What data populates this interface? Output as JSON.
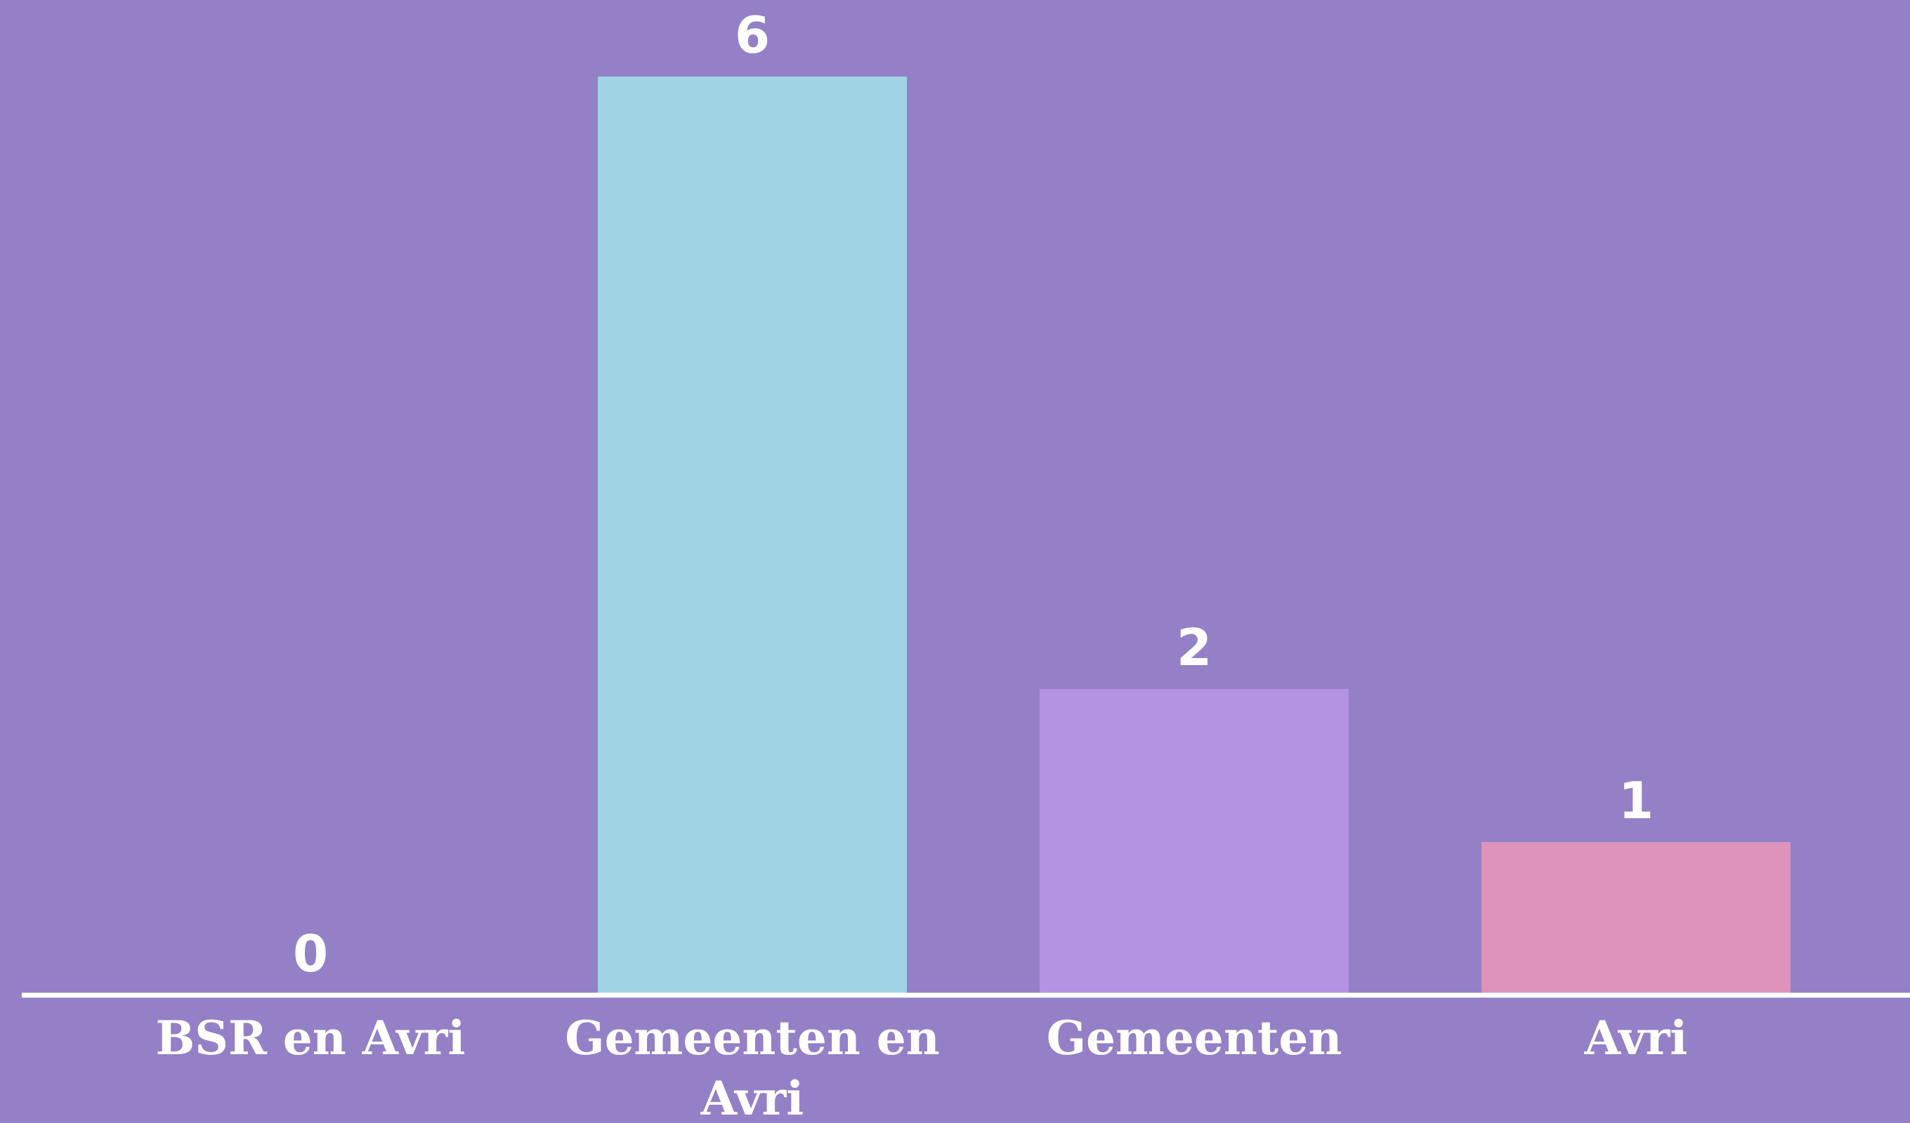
{
  "chart_data": {
    "type": "bar",
    "categories": [
      "BSR en Avri",
      "Gemeenten en Avri",
      "Gemeenten",
      "Avri"
    ],
    "values": [
      0,
      6,
      2,
      1
    ],
    "colors": [
      "#a0d4e4",
      "#a0d4e4",
      "#b393e3",
      "#de93bc"
    ],
    "ylim": [
      0,
      6.5
    ]
  }
}
